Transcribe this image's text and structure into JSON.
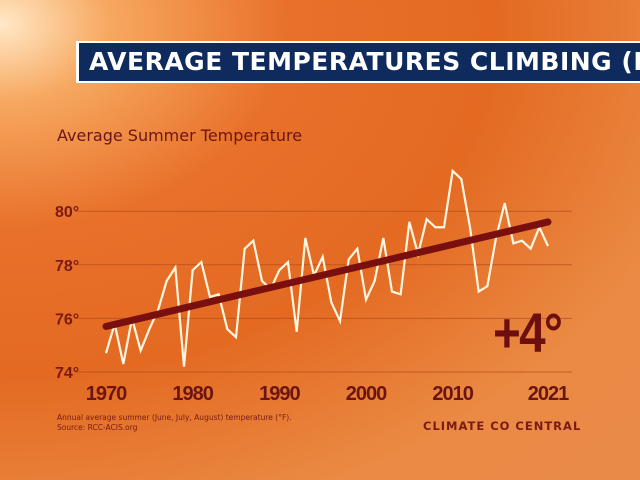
{
  "header": {
    "title": "AVERAGE TEMPERATURES CLIMBING (R"
  },
  "chart_data": {
    "type": "line",
    "title": "Average Summer Temperature",
    "xlabel": "",
    "ylabel": "",
    "x_ticks": [
      "1970",
      "1980",
      "1990",
      "2000",
      "2010",
      "2021"
    ],
    "y_ticks": [
      "74°",
      "76°",
      "78°",
      "80°"
    ],
    "xlim": [
      1970,
      2021
    ],
    "ylim": [
      74,
      82
    ],
    "grid": "horizontal",
    "x": [
      1970,
      1971,
      1972,
      1973,
      1974,
      1975,
      1976,
      1977,
      1978,
      1979,
      1980,
      1981,
      1982,
      1983,
      1984,
      1985,
      1986,
      1987,
      1988,
      1989,
      1990,
      1991,
      1992,
      1993,
      1994,
      1995,
      1996,
      1997,
      1998,
      1999,
      2000,
      2001,
      2002,
      2003,
      2004,
      2005,
      2006,
      2007,
      2008,
      2009,
      2010,
      2011,
      2012,
      2013,
      2014,
      2015,
      2016,
      2017,
      2018,
      2019,
      2020,
      2021
    ],
    "series": [
      {
        "values": [
          74.7,
          75.8,
          74.3,
          76.0,
          74.8,
          75.6,
          76.3,
          77.4,
          77.9,
          74.2,
          77.8,
          78.1,
          76.8,
          76.9,
          75.6,
          75.3,
          78.6,
          78.9,
          77.4,
          77.1,
          77.8,
          78.1,
          75.5,
          79.0,
          77.6,
          78.3,
          76.6,
          75.9,
          78.2,
          78.6,
          76.7,
          77.4,
          79.0,
          77.0,
          76.9,
          79.6,
          78.4,
          79.7,
          79.4,
          79.4,
          81.5,
          81.2,
          79.4,
          77.0,
          77.2,
          79.0,
          80.3,
          78.8,
          78.9,
          78.6,
          79.4,
          78.7
        ],
        "color": "#fff6e0"
      },
      {
        "type": "trend",
        "values": [
          75.7,
          79.6
        ],
        "x": [
          1970,
          2021
        ],
        "color": "#7a0f0f"
      }
    ],
    "annotation": "+4°"
  },
  "footer": {
    "note": "Annual average summer (June, July, August) temperature (°F).",
    "source": "Source: RCC-ACIS.org",
    "brand": "CLIMATE CO CENTRAL"
  }
}
